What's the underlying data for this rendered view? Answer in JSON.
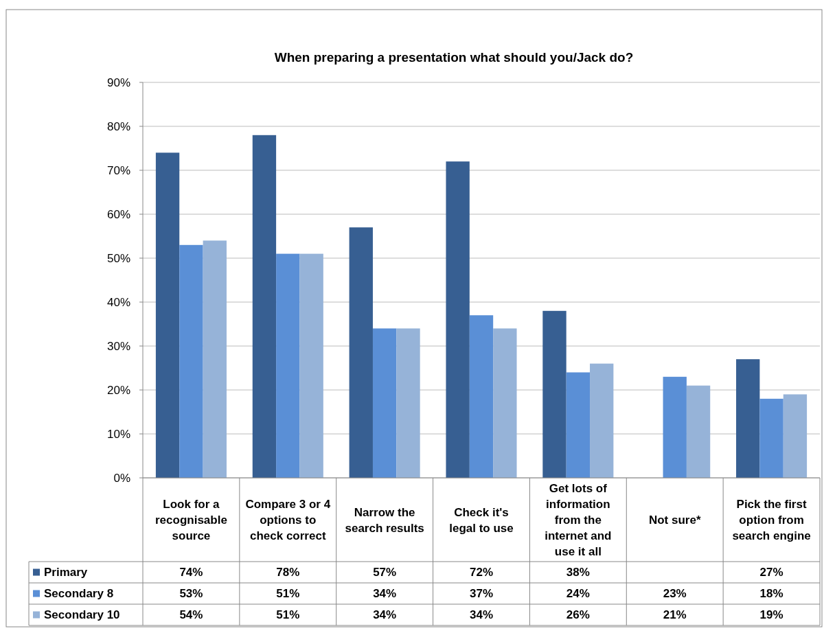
{
  "chart_data": {
    "type": "bar",
    "title": "When preparing a presentation what should you/Jack do?",
    "categories": [
      "Look for a recognisable source",
      "Compare 3 or 4 options to check correct",
      "Narrow the search results",
      "Check it's legal to use",
      "Get lots of information from the internet and use it all",
      "Not sure*",
      "Pick the first option from search engine"
    ],
    "series": [
      {
        "name": "Primary",
        "color": "#375f92",
        "values": [
          74,
          78,
          57,
          72,
          38,
          null,
          27
        ],
        "value_labels": [
          "74%",
          "78%",
          "57%",
          "72%",
          "38%",
          null,
          "27%"
        ]
      },
      {
        "name": "Secondary 8",
        "color": "#5a8fd6",
        "values": [
          53,
          51,
          34,
          37,
          24,
          23,
          18
        ],
        "value_labels": [
          "53%",
          "51%",
          "34%",
          "37%",
          "24%",
          "23%",
          "18%"
        ]
      },
      {
        "name": "Secondary 10",
        "color": "#96b3d8",
        "values": [
          54,
          51,
          34,
          34,
          26,
          21,
          19
        ],
        "value_labels": [
          "54%",
          "51%",
          "34%",
          "34%",
          "26%",
          "21%",
          "19%"
        ]
      }
    ],
    "ylim": [
      0,
      90
    ],
    "yticks": [
      {
        "value": 0,
        "label": "0%"
      },
      {
        "value": 10,
        "label": "10%"
      },
      {
        "value": 20,
        "label": "20%"
      },
      {
        "value": 30,
        "label": "30%"
      },
      {
        "value": 40,
        "label": "40%"
      },
      {
        "value": 50,
        "label": "50%"
      },
      {
        "value": 60,
        "label": "60%"
      },
      {
        "value": 70,
        "label": "70%"
      },
      {
        "value": 80,
        "label": "80%"
      },
      {
        "value": 90,
        "label": "90%"
      }
    ],
    "grid": "y",
    "legend": "bottom left"
  }
}
